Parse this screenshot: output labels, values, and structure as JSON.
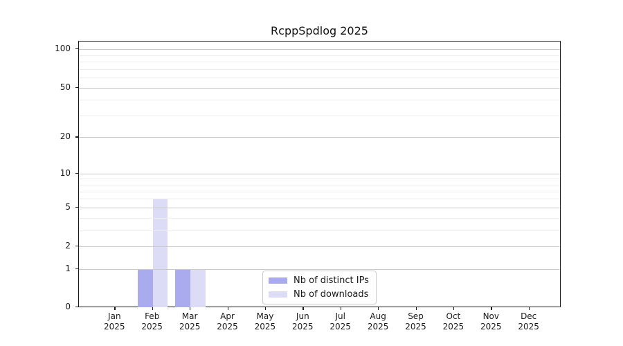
{
  "chart_data": {
    "type": "bar",
    "title": "RcppSpdlog 2025",
    "categories": [
      "Jan",
      "Feb",
      "Mar",
      "Apr",
      "May",
      "Jun",
      "Jul",
      "Aug",
      "Sep",
      "Oct",
      "Nov",
      "Dec"
    ],
    "year": "2025",
    "series": [
      {
        "name": "Nb of distinct IPs",
        "color": "#aaaaee",
        "values": [
          0,
          1,
          1,
          0,
          0,
          0,
          0,
          0,
          0,
          0,
          0,
          0
        ]
      },
      {
        "name": "Nb of downloads",
        "color": "#dcdcf7",
        "values": [
          0,
          6,
          1,
          0,
          0,
          0,
          0,
          0,
          0,
          0,
          0,
          0
        ]
      }
    ],
    "xlabel": "",
    "ylabel": "",
    "y_scale": "log1p",
    "y_ticks": [
      0,
      1,
      2,
      5,
      10,
      20,
      50,
      100
    ],
    "y_minor_ticks": [
      3,
      4,
      6,
      7,
      8,
      9,
      30,
      40,
      60,
      70,
      80,
      90
    ],
    "ylim": [
      0,
      115
    ],
    "grid": "horizontal",
    "legend_position": "inside-bottom-center",
    "colors": {
      "bar_distinct_ips": "#aaaaee",
      "bar_downloads": "#dcdcf7",
      "major_grid": "#c9c9c9",
      "minor_grid": "#ededed",
      "spine": "#1a1a1a",
      "text": "#1a1a1a",
      "legend_border": "#cbcbcb"
    }
  }
}
